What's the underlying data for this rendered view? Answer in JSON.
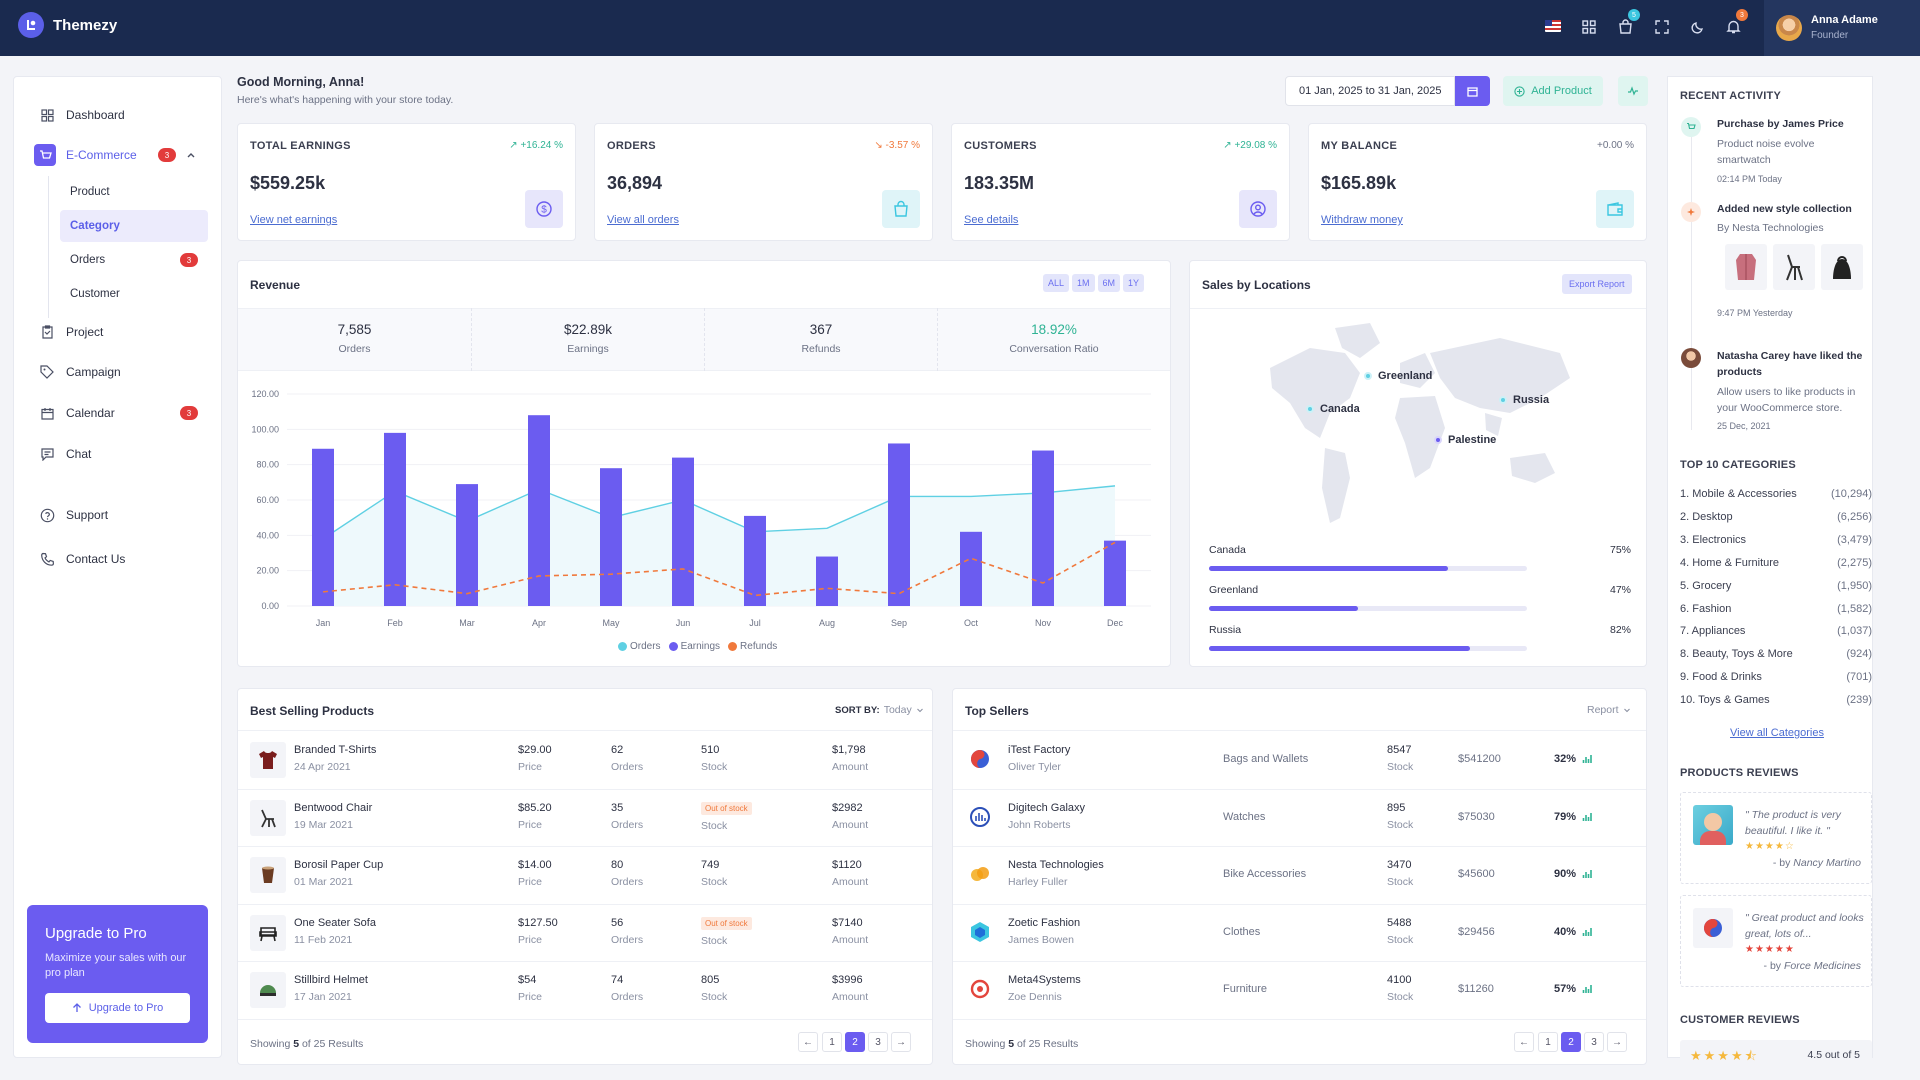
{
  "app": {
    "name": "Themezy"
  },
  "topbar": {
    "cart_count": "5",
    "notif_count": "3",
    "user_name": "Anna Adame",
    "user_role": "Founder"
  },
  "sidebar": {
    "dashboard": "Dashboard",
    "ecommerce": "E-Commerce",
    "ecommerce_badge": "3",
    "sub": {
      "product": "Product",
      "category": "Category",
      "orders": "Orders",
      "orders_badge": "3",
      "customer": "Customer"
    },
    "project": "Project",
    "campaign": "Campaign",
    "calendar": "Calendar",
    "calendar_badge": "3",
    "chat": "Chat",
    "support": "Support",
    "contact": "Contact Us",
    "upgrade": {
      "title": "Upgrade to Pro",
      "text": "Maximize your sales with our pro plan",
      "button": "Upgrade to Pro"
    }
  },
  "greeting": {
    "title": "Good Morning, Anna!",
    "subtitle": "Here's what's happening with your store today."
  },
  "date_range": "01 Jan, 2025 to 31 Jan, 2025",
  "add_product": "Add Product",
  "stats": [
    {
      "title": "TOTAL EARNINGS",
      "change": "+16.24 %",
      "value": "$559.25k",
      "link": "View net earnings"
    },
    {
      "title": "ORDERS",
      "change": "-3.57 %",
      "value": "36,894",
      "link": "View all orders"
    },
    {
      "title": "CUSTOMERS",
      "change": "+29.08 %",
      "value": "183.35M",
      "link": "See details"
    },
    {
      "title": "MY BALANCE",
      "change": "+0.00 %",
      "value": "$165.89k",
      "link": "Withdraw money"
    }
  ],
  "revenue": {
    "title": "Revenue",
    "filters": [
      "ALL",
      "1M",
      "6M",
      "1Y"
    ],
    "summary": [
      {
        "value": "7,585",
        "label": "Orders"
      },
      {
        "value": "$22.89k",
        "label": "Earnings"
      },
      {
        "value": "367",
        "label": "Refunds"
      },
      {
        "value": "18.92%",
        "label": "Conversation Ratio"
      }
    ],
    "legend": [
      "Orders",
      "Earnings",
      "Refunds"
    ]
  },
  "chart_data": {
    "type": "bar",
    "categories": [
      "Jan",
      "Feb",
      "Mar",
      "Apr",
      "May",
      "Jun",
      "Jul",
      "Aug",
      "Sep",
      "Oct",
      "Nov",
      "Dec"
    ],
    "ylim": [
      0,
      120
    ],
    "yticks": [
      "0.00",
      "20.00",
      "40.00",
      "60.00",
      "80.00",
      "100.00",
      "120.00"
    ],
    "series": [
      {
        "name": "Orders",
        "type": "area",
        "color": "#5fd0e3",
        "values": [
          38,
          65,
          48,
          66,
          50,
          60,
          42,
          44,
          62,
          62,
          64,
          68
        ]
      },
      {
        "name": "Earnings",
        "type": "bar",
        "color": "#6b5cf0",
        "values": [
          89,
          98,
          69,
          108,
          78,
          84,
          51,
          28,
          92,
          42,
          88,
          37
        ]
      },
      {
        "name": "Refunds",
        "type": "line-dashed",
        "color": "#f0793c",
        "values": [
          8,
          12,
          7,
          17,
          18,
          21,
          6,
          10,
          7,
          27,
          13,
          36
        ]
      }
    ]
  },
  "locations": {
    "title": "Sales by Locations",
    "export": "Export Report",
    "markers": [
      "Greenland",
      "Canada",
      "Russia",
      "Palestine"
    ],
    "bars": [
      {
        "name": "Canada",
        "pct": "75%",
        "value": 75
      },
      {
        "name": "Greenland",
        "pct": "47%",
        "value": 47
      },
      {
        "name": "Russia",
        "pct": "82%",
        "value": 82
      }
    ]
  },
  "best_selling": {
    "title": "Best Selling Products",
    "sort_label": "SORT BY:",
    "sort_value": "Today",
    "rows": [
      {
        "name": "Branded T-Shirts",
        "date": "24 Apr 2021",
        "price": "$29.00",
        "orders": "62",
        "stock": "510",
        "amount": "$1,798"
      },
      {
        "name": "Bentwood Chair",
        "date": "19 Mar 2021",
        "price": "$85.20",
        "orders": "35",
        "stock": "Out of stock",
        "amount": "$2982"
      },
      {
        "name": "Borosil Paper Cup",
        "date": "01 Mar 2021",
        "price": "$14.00",
        "orders": "80",
        "stock": "749",
        "amount": "$1120"
      },
      {
        "name": "One Seater Sofa",
        "date": "11 Feb 2021",
        "price": "$127.50",
        "orders": "56",
        "stock": "Out of stock",
        "amount": "$7140"
      },
      {
        "name": "Stillbird Helmet",
        "date": "17 Jan 2021",
        "price": "$54",
        "orders": "74",
        "stock": "805",
        "amount": "$3996"
      }
    ],
    "labels": {
      "price": "Price",
      "orders": "Orders",
      "stock": "Stock",
      "amount": "Amount"
    },
    "footer": {
      "prefix": "Showing",
      "shown": "5",
      "suffix": "of 25 Results"
    }
  },
  "top_sellers": {
    "title": "Top Sellers",
    "report": "Report",
    "rows": [
      {
        "name": "iTest Factory",
        "person": "Oliver Tyler",
        "category": "Bags and Wallets",
        "stock": "8547",
        "amount": "$541200",
        "pct": "32%"
      },
      {
        "name": "Digitech Galaxy",
        "person": "John Roberts",
        "category": "Watches",
        "stock": "895",
        "amount": "$75030",
        "pct": "79%"
      },
      {
        "name": "Nesta Technologies",
        "person": "Harley Fuller",
        "category": "Bike Accessories",
        "stock": "3470",
        "amount": "$45600",
        "pct": "90%"
      },
      {
        "name": "Zoetic Fashion",
        "person": "James Bowen",
        "category": "Clothes",
        "stock": "5488",
        "amount": "$29456",
        "pct": "40%"
      },
      {
        "name": "Meta4Systems",
        "person": "Zoe Dennis",
        "category": "Furniture",
        "stock": "4100",
        "amount": "$11260",
        "pct": "57%"
      }
    ],
    "stock_label": "Stock",
    "footer": {
      "prefix": "Showing",
      "shown": "5",
      "suffix": "of 25 Results"
    }
  },
  "pagination": {
    "prev": "←",
    "pages": [
      "1",
      "2",
      "3"
    ],
    "next": "→"
  },
  "activity": {
    "title": "RECENT ACTIVITY",
    "items": [
      {
        "title": "Purchase by James Price",
        "text": "Product noise evolve smartwatch",
        "time": "02:14 PM Today"
      },
      {
        "title": "Added new style collection",
        "text": "By Nesta Technologies",
        "time": "9:47 PM Yesterday"
      },
      {
        "title": "Natasha Carey have liked the products",
        "text": "Allow users to like products in your WooCommerce store.",
        "time": "25 Dec, 2021"
      }
    ]
  },
  "top_categories": {
    "title": "TOP 10 CATEGORIES",
    "items": [
      {
        "name": "1. Mobile & Accessories",
        "count": "(10,294)"
      },
      {
        "name": "2. Desktop",
        "count": "(6,256)"
      },
      {
        "name": "3. Electronics",
        "count": "(3,479)"
      },
      {
        "name": "4. Home & Furniture",
        "count": "(2,275)"
      },
      {
        "name": "5. Grocery",
        "count": "(1,950)"
      },
      {
        "name": "6. Fashion",
        "count": "(1,582)"
      },
      {
        "name": "7. Appliances",
        "count": "(1,037)"
      },
      {
        "name": "8. Beauty, Toys & More",
        "count": "(924)"
      },
      {
        "name": "9. Food & Drinks",
        "count": "(701)"
      },
      {
        "name": "10. Toys & Games",
        "count": "(239)"
      }
    ],
    "link": "View all Categories"
  },
  "reviews": {
    "title": "PRODUCTS REVIEWS",
    "items": [
      {
        "text": "\" The product is very beautiful. I like it. \"",
        "by": "- by",
        "author": "Nancy Martino"
      },
      {
        "text": "\" Great product and looks great, lots of...",
        "by": "- by",
        "author": "Force Medicines"
      }
    ]
  },
  "customer_reviews": {
    "title": "CUSTOMER REVIEWS",
    "rating": "4.5 out of 5"
  }
}
